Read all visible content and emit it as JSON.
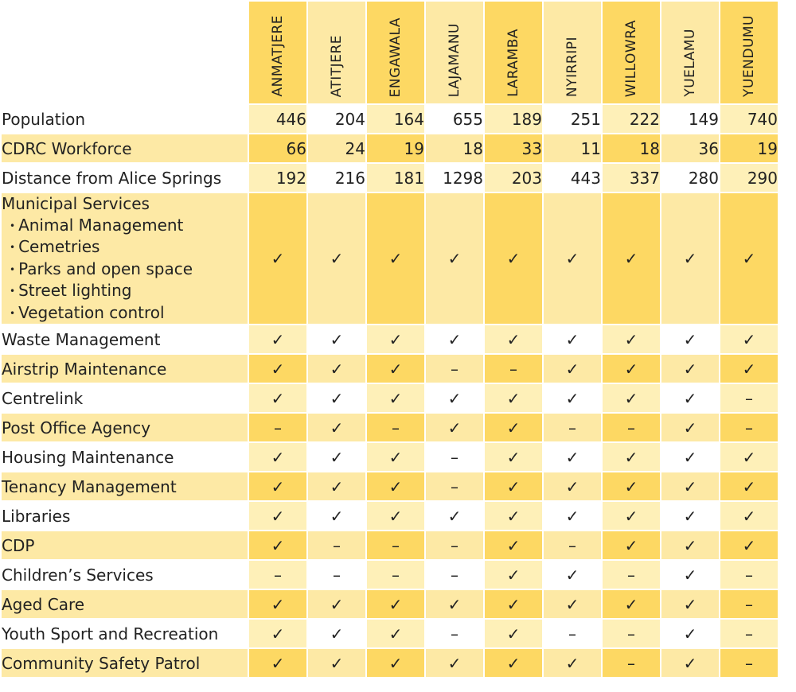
{
  "communities": [
    "ANMATJERE",
    "ATITJERE",
    "ENGAWALA",
    "LAJAMANU",
    "LARAMBA",
    "NYIRRIPI",
    "WILLOWRA",
    "YUELAMU",
    "YUENDUMU"
  ],
  "numeric_rows": [
    {
      "label": "Population",
      "values": [
        "446",
        "204",
        "164",
        "655",
        "189",
        "251",
        "222",
        "149",
        "740"
      ]
    },
    {
      "label": "CDRC Workforce",
      "values": [
        "66",
        "24",
        "19",
        "18",
        "33",
        "11",
        "18",
        "36",
        "19"
      ]
    },
    {
      "label": "Distance from Alice Springs",
      "values": [
        "192",
        "216",
        "181",
        "1298",
        "203",
        "443",
        "337",
        "280",
        "290"
      ]
    }
  ],
  "municipal": {
    "title": "Municipal Services",
    "items": [
      "Animal Management",
      "Cemetries",
      "Parks and open space",
      "Street lighting",
      "Vegetation control"
    ],
    "bullet": "•",
    "values": [
      "✓",
      "✓",
      "✓",
      "✓",
      "✓",
      "✓",
      "✓",
      "✓",
      "✓"
    ]
  },
  "service_rows": [
    {
      "label": "Waste Management",
      "values": [
        "✓",
        "✓",
        "✓",
        "✓",
        "✓",
        "✓",
        "✓",
        "✓",
        "✓"
      ]
    },
    {
      "label": "Airstrip Maintenance",
      "values": [
        "✓",
        "✓",
        "✓",
        "–",
        "–",
        "✓",
        "✓",
        "✓",
        "✓"
      ]
    },
    {
      "label": "Centrelink",
      "values": [
        "✓",
        "✓",
        "✓",
        "✓",
        "✓",
        "✓",
        "✓",
        "✓",
        "–"
      ]
    },
    {
      "label": "Post Office Agency",
      "values": [
        "–",
        "✓",
        "–",
        "✓",
        "✓",
        "–",
        "–",
        "✓",
        "–"
      ]
    },
    {
      "label": "Housing Maintenance",
      "values": [
        "✓",
        "✓",
        "✓",
        "–",
        "✓",
        "✓",
        "✓",
        "✓",
        "✓"
      ]
    },
    {
      "label": "Tenancy Management",
      "values": [
        "✓",
        "✓",
        "✓",
        "–",
        "✓",
        "✓",
        "✓",
        "✓",
        "✓"
      ]
    },
    {
      "label": "Libraries",
      "values": [
        "✓",
        "✓",
        "✓",
        "✓",
        "✓",
        "✓",
        "✓",
        "✓",
        "✓"
      ]
    },
    {
      "label": "CDP",
      "values": [
        "✓",
        "–",
        "–",
        "–",
        "✓",
        "–",
        "✓",
        "✓",
        "✓"
      ]
    },
    {
      "label": "Children’s Services",
      "values": [
        "–",
        "–",
        "–",
        "–",
        "✓",
        "✓",
        "–",
        "✓",
        "–"
      ]
    },
    {
      "label": "Aged Care",
      "values": [
        "✓",
        "✓",
        "✓",
        "✓",
        "✓",
        "✓",
        "✓",
        "✓",
        "–"
      ]
    },
    {
      "label": "Youth Sport and Recreation",
      "values": [
        "✓",
        "✓",
        "✓",
        "–",
        "✓",
        "–",
        "–",
        "✓",
        "–"
      ]
    },
    {
      "label": "Community Safety Patrol",
      "values": [
        "✓",
        "✓",
        "✓",
        "✓",
        "✓",
        "✓",
        "–",
        "✓",
        "–"
      ]
    }
  ],
  "colors": {
    "yellow_dark": "#fdd863",
    "yellow_light": "#fde9a5",
    "yellow_pale": "#fef0b8",
    "white": "#ffffff"
  }
}
